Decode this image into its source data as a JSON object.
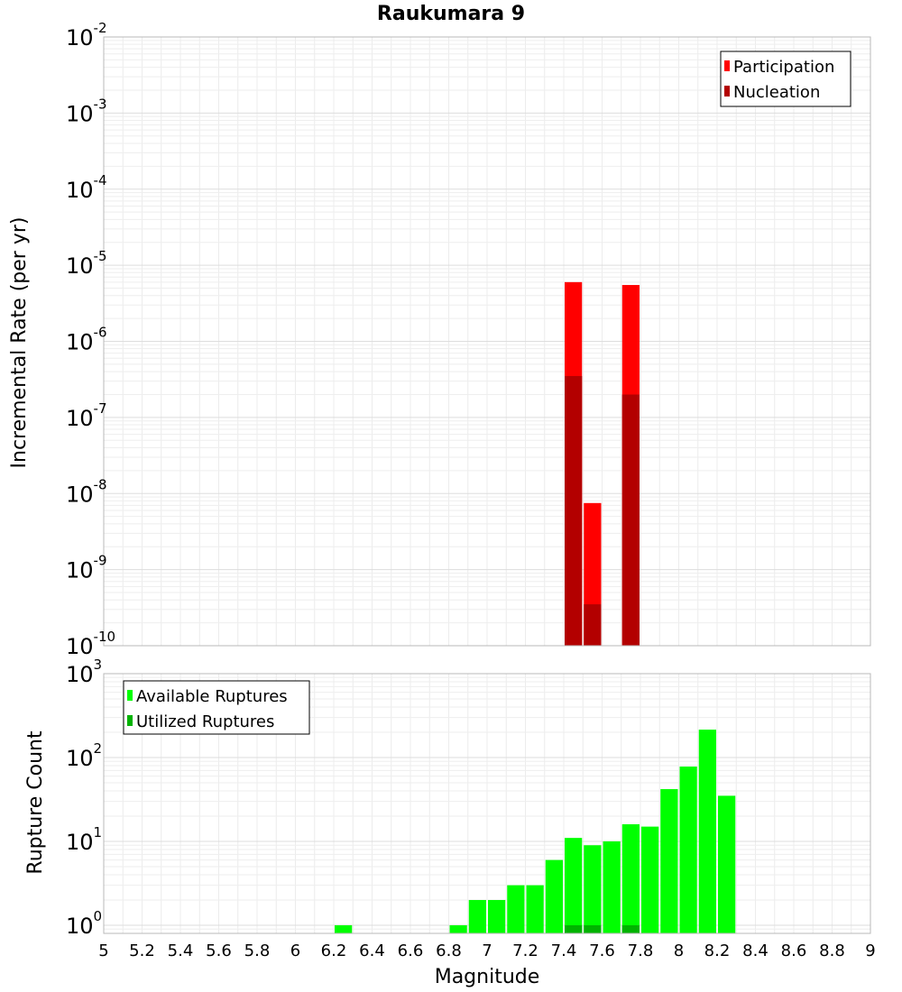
{
  "chart_data": [
    {
      "type": "bar",
      "title": "Raukumara 9",
      "ylabel": "Incremental Rate (per yr)",
      "yscale": "log",
      "ylim": [
        1e-10,
        0.01
      ],
      "xlim": [
        5,
        9
      ],
      "grid": true,
      "legend_position": "top-right",
      "bar_width": 0.1,
      "series": [
        {
          "name": "Participation",
          "color": "#ff0000",
          "x": [
            7.45,
            7.55,
            7.75
          ],
          "values": [
            6e-06,
            7.5e-09,
            5.5e-06
          ]
        },
        {
          "name": "Nucleation",
          "color": "#b30000",
          "x": [
            7.45,
            7.55,
            7.75
          ],
          "values": [
            3.5e-07,
            3.5e-10,
            2e-07
          ]
        }
      ]
    },
    {
      "type": "bar",
      "ylabel": "Rupture Count",
      "xlabel": "Magnitude",
      "yscale": "log",
      "ylim": [
        0.8,
        1000
      ],
      "xlim": [
        5,
        9
      ],
      "grid": true,
      "legend_position": "top-left",
      "bar_width": 0.1,
      "series": [
        {
          "name": "Available Ruptures",
          "color": "#00ff00",
          "x": [
            6.25,
            6.85,
            6.95,
            7.05,
            7.15,
            7.25,
            7.35,
            7.45,
            7.55,
            7.65,
            7.75,
            7.85,
            7.95,
            8.05,
            8.15,
            8.25
          ],
          "values": [
            1,
            1,
            2,
            2,
            3,
            3,
            6,
            11,
            9,
            10,
            16,
            15,
            42,
            78,
            215,
            35
          ]
        },
        {
          "name": "Utilized Ruptures",
          "color": "#00b300",
          "x": [
            7.45,
            7.55,
            7.75
          ],
          "values": [
            1,
            1,
            1
          ]
        }
      ]
    }
  ],
  "x_ticks": [
    "5",
    "5.2",
    "5.4",
    "5.6",
    "5.8",
    "6",
    "6.2",
    "6.4",
    "6.6",
    "6.8",
    "7",
    "7.2",
    "7.4",
    "7.6",
    "7.8",
    "8",
    "8.2",
    "8.4",
    "8.6",
    "8.8",
    "9"
  ],
  "top_y_ticks": [
    {
      "base": "10",
      "exp": "-2",
      "value": 0.01
    },
    {
      "base": "10",
      "exp": "-3",
      "value": 0.001
    },
    {
      "base": "10",
      "exp": "-4",
      "value": 0.0001
    },
    {
      "base": "10",
      "exp": "-5",
      "value": 1e-05
    },
    {
      "base": "10",
      "exp": "-6",
      "value": 1e-06
    },
    {
      "base": "10",
      "exp": "-7",
      "value": 1e-07
    },
    {
      "base": "10",
      "exp": "-8",
      "value": 1e-08
    },
    {
      "base": "10",
      "exp": "-9",
      "value": 1e-09
    },
    {
      "base": "10",
      "exp": "-10",
      "value": 1e-10
    }
  ],
  "bottom_y_ticks": [
    {
      "base": "10",
      "exp": "3",
      "value": 1000
    },
    {
      "base": "10",
      "exp": "2",
      "value": 100
    },
    {
      "base": "10",
      "exp": "1",
      "value": 10
    },
    {
      "base": "10",
      "exp": "0",
      "value": 1
    }
  ]
}
